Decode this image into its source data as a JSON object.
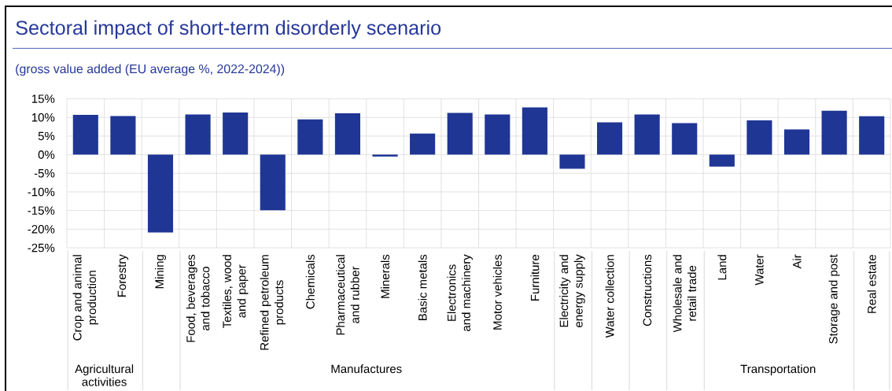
{
  "chart_data": {
    "type": "bar",
    "title": "Sectoral impact of short-term disorderly scenario",
    "subtitle": "(gross value added (EU average %, 2022-2024))",
    "categories": [
      "Crop and animal production",
      "Forestry",
      "Mining",
      "Food, beverages and tobacco",
      "Textiles, wood and paper",
      "Refined petroleum products",
      "Chemicals",
      "Pharmaceutical and rubber",
      "Minerals",
      "Basic metals",
      "Electronics and machinery",
      "Motor vehicles",
      "Furniture",
      "Electricity and energy supply",
      "Water collection",
      "Constructions",
      "Wholesale and retail trade",
      "Land",
      "Water",
      "Air",
      "Storage and post",
      "Real estate"
    ],
    "values": [
      10.7,
      10.4,
      -20.9,
      10.8,
      11.3,
      -14.9,
      9.5,
      11.1,
      -0.5,
      5.7,
      11.2,
      10.8,
      12.7,
      -3.8,
      8.7,
      10.8,
      8.5,
      -3.2,
      9.2,
      6.8,
      11.8,
      10.3
    ],
    "color": "#1f3694",
    "ylim": [
      -25,
      15
    ],
    "yticks": [
      {
        "value": -25,
        "label": "-25%"
      },
      {
        "value": -20,
        "label": "-20%"
      },
      {
        "value": -15,
        "label": "-15%"
      },
      {
        "value": -10,
        "label": "-10%"
      },
      {
        "value": -5,
        "label": "-5%"
      },
      {
        "value": 0,
        "label": "0%"
      },
      {
        "value": 5,
        "label": "5%"
      },
      {
        "value": 10,
        "label": "10%"
      },
      {
        "value": 15,
        "label": "15%"
      }
    ],
    "grid": true,
    "annotations": [
      "Agricultural activities",
      "Manufactures",
      "Transportation"
    ]
  }
}
